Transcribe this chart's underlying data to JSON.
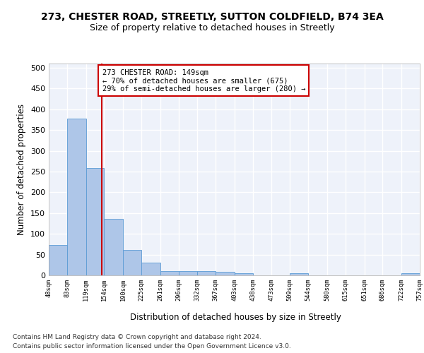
{
  "title_line1": "273, CHESTER ROAD, STREETLY, SUTTON COLDFIELD, B74 3EA",
  "title_line2": "Size of property relative to detached houses in Streetly",
  "xlabel": "Distribution of detached houses by size in Streetly",
  "ylabel": "Number of detached properties",
  "footer_line1": "Contains HM Land Registry data © Crown copyright and database right 2024.",
  "footer_line2": "Contains public sector information licensed under the Open Government Licence v3.0.",
  "bin_edges": [
    48,
    83,
    119,
    154,
    190,
    225,
    261,
    296,
    332,
    367,
    403,
    438,
    473,
    509,
    544,
    580,
    615,
    651,
    686,
    722,
    757
  ],
  "bar_heights": [
    73,
    378,
    259,
    136,
    61,
    30,
    10,
    10,
    10,
    8,
    5,
    0,
    0,
    5,
    0,
    0,
    0,
    0,
    0,
    5
  ],
  "bar_color": "#aec6e8",
  "bar_edge_color": "#5b9bd5",
  "property_size": 149,
  "vline_color": "#cc0000",
  "annotation_line1": "273 CHESTER ROAD: 149sqm",
  "annotation_line2": "← 70% of detached houses are smaller (675)",
  "annotation_line3": "29% of semi-detached houses are larger (280) →",
  "annotation_box_color": "#ffffff",
  "annotation_box_edge": "#cc0000",
  "ylim": [
    0,
    510
  ],
  "yticks": [
    0,
    50,
    100,
    150,
    200,
    250,
    300,
    350,
    400,
    450,
    500
  ],
  "bg_color": "#eef2fa",
  "grid_color": "#ffffff",
  "title1_fontsize": 10,
  "title2_fontsize": 9
}
